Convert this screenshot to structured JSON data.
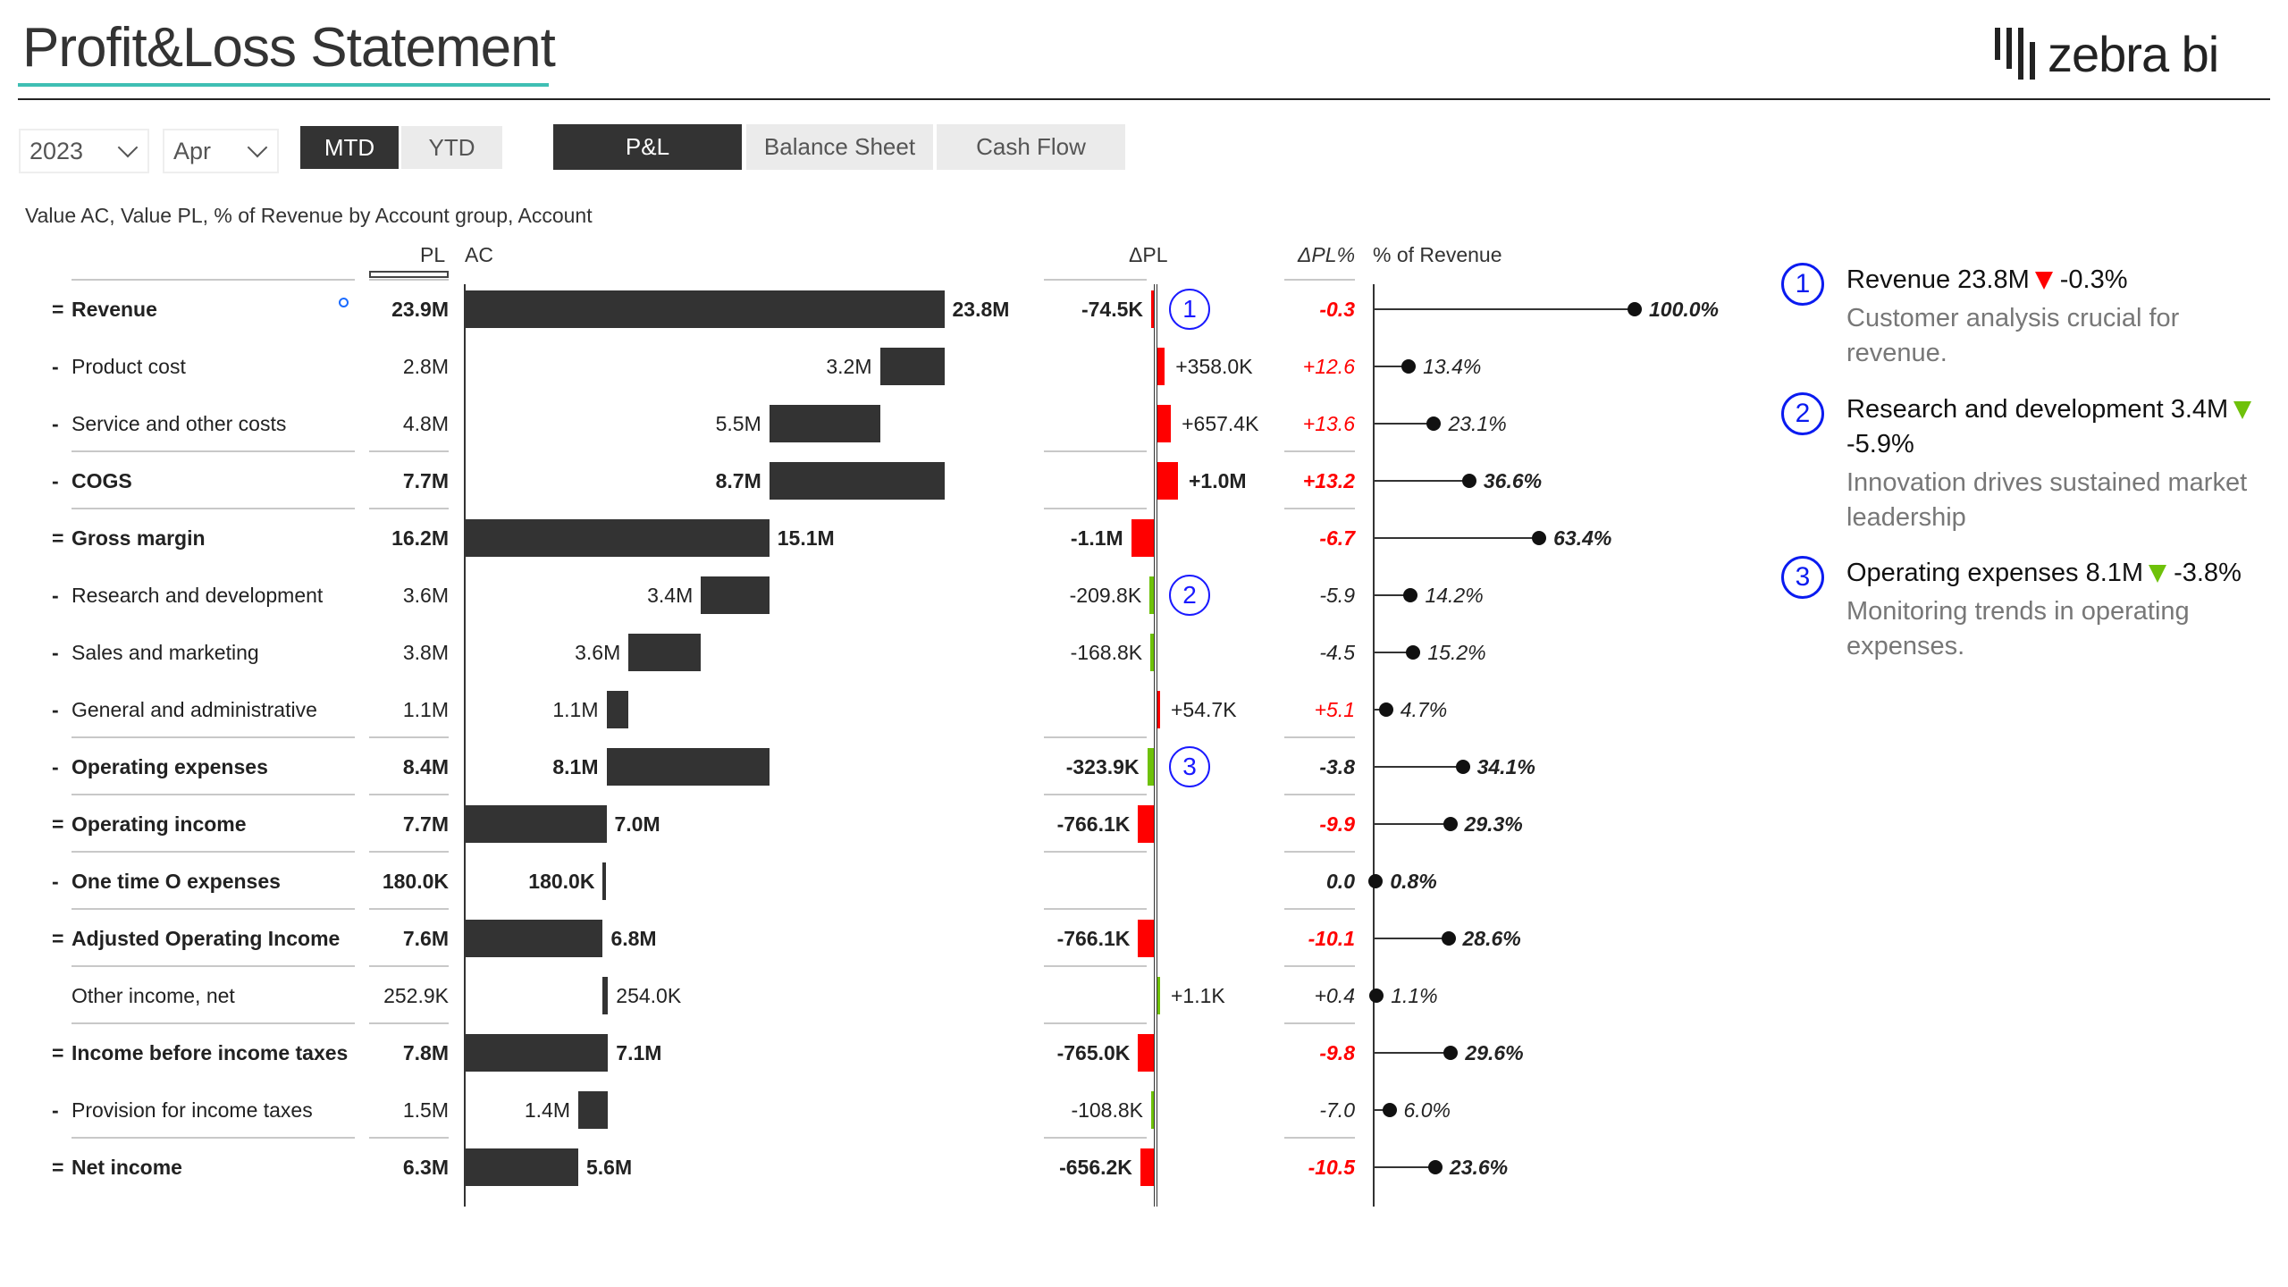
{
  "header": {
    "title": "Profit&Loss Statement",
    "logo_text": "zebra bi"
  },
  "filters": {
    "year": "2023",
    "month": "Apr",
    "period_buttons": [
      "MTD",
      "YTD"
    ],
    "period_selected": "MTD",
    "report_tabs": [
      "P&L",
      "Balance Sheet",
      "Cash Flow"
    ],
    "report_selected": "P&L"
  },
  "table": {
    "subtitle": "Value AC, Value PL, % of Revenue by Account group, Account",
    "headers": {
      "pl": "PL",
      "ac": "AC",
      "dpl": "ΔPL",
      "dplpct": "ΔPL%",
      "pct_rev": "% of Revenue"
    },
    "colors": {
      "bar": "#333333",
      "negative": "#ff0000",
      "positive": "#6ec10a",
      "annotation": "#1a1aff"
    },
    "rows": [
      {
        "sign": "=",
        "label": "Revenue",
        "bold": true,
        "sep": true,
        "pl": "23.9M",
        "ac": "23.8M",
        "ac_from": 0,
        "ac_to": 23.8,
        "ac_side": "right",
        "dpl": "-74.5K",
        "dpl_val": -0.0745,
        "dpl_color": "negative",
        "dplpct": "-0.3",
        "dplpct_red": true,
        "pct": "100.0%",
        "pct_val": 100,
        "annotation": "1",
        "marker": true
      },
      {
        "sign": "-",
        "label": "Product cost",
        "bold": false,
        "pl": "2.8M",
        "ac": "3.2M",
        "ac_from": 23.8,
        "ac_to": 20.6,
        "ac_side": "left",
        "dpl": "+358.0K",
        "dpl_val": 0.358,
        "dpl_color": "negative",
        "dplpct": "+12.6",
        "dplpct_red": true,
        "pct": "13.4%",
        "pct_val": 13.4
      },
      {
        "sign": "-",
        "label": "Service and other costs",
        "bold": false,
        "pl": "4.8M",
        "ac": "5.5M",
        "ac_from": 20.6,
        "ac_to": 15.1,
        "ac_side": "left",
        "dpl": "+657.4K",
        "dpl_val": 0.6574,
        "dpl_color": "negative",
        "dplpct": "+13.6",
        "dplpct_red": true,
        "pct": "23.1%",
        "pct_val": 23.1
      },
      {
        "sign": "-",
        "label": "COGS",
        "bold": true,
        "sep": true,
        "pl": "7.7M",
        "ac": "8.7M",
        "ac_from": 23.8,
        "ac_to": 15.1,
        "ac_side": "left",
        "dpl": "+1.0M",
        "dpl_val": 1.0,
        "dpl_color": "negative",
        "dplpct": "+13.2",
        "dplpct_red": true,
        "pct": "36.6%",
        "pct_val": 36.6
      },
      {
        "sign": "=",
        "label": "Gross margin",
        "bold": true,
        "sep": true,
        "pl": "16.2M",
        "ac": "15.1M",
        "ac_from": 0,
        "ac_to": 15.1,
        "ac_side": "right",
        "dpl": "-1.1M",
        "dpl_val": -1.1,
        "dpl_color": "negative",
        "dplpct": "-6.7",
        "dplpct_red": true,
        "pct": "63.4%",
        "pct_val": 63.4
      },
      {
        "sign": "-",
        "label": "Research and development",
        "bold": false,
        "pl": "3.6M",
        "ac": "3.4M",
        "ac_from": 15.1,
        "ac_to": 11.7,
        "ac_side": "left",
        "dpl": "-209.8K",
        "dpl_val": -0.2098,
        "dpl_color": "positive",
        "dplpct": "-5.9",
        "dplpct_red": false,
        "pct": "14.2%",
        "pct_val": 14.2,
        "annotation": "2"
      },
      {
        "sign": "-",
        "label": "Sales and marketing",
        "bold": false,
        "pl": "3.8M",
        "ac": "3.6M",
        "ac_from": 11.7,
        "ac_to": 8.1,
        "ac_side": "left",
        "dpl": "-168.8K",
        "dpl_val": -0.1688,
        "dpl_color": "positive",
        "dplpct": "-4.5",
        "dplpct_red": false,
        "pct": "15.2%",
        "pct_val": 15.2
      },
      {
        "sign": "-",
        "label": "General and administrative",
        "bold": false,
        "pl": "1.1M",
        "ac": "1.1M",
        "ac_from": 8.1,
        "ac_to": 7.0,
        "ac_side": "left",
        "dpl": "+54.7K",
        "dpl_val": 0.0547,
        "dpl_color": "negative",
        "dplpct": "+5.1",
        "dplpct_red": true,
        "pct": "4.7%",
        "pct_val": 4.7
      },
      {
        "sign": "-",
        "label": "Operating expenses",
        "bold": true,
        "sep": true,
        "pl": "8.4M",
        "ac": "8.1M",
        "ac_from": 7.0,
        "ac_to": 15.1,
        "ac_side": "left",
        "dpl": "-323.9K",
        "dpl_val": -0.3239,
        "dpl_color": "positive",
        "dplpct": "-3.8",
        "dplpct_red": false,
        "pct": "34.1%",
        "pct_val": 34.1,
        "annotation": "3"
      },
      {
        "sign": "=",
        "label": "Operating income",
        "bold": true,
        "sep": true,
        "pl": "7.7M",
        "ac": "7.0M",
        "ac_from": 0,
        "ac_to": 7.0,
        "ac_side": "right",
        "dpl": "-766.1K",
        "dpl_val": -0.7661,
        "dpl_color": "negative",
        "dplpct": "-9.9",
        "dplpct_red": true,
        "pct": "29.3%",
        "pct_val": 29.3
      },
      {
        "sign": "-",
        "label": "One time O expenses",
        "bold": true,
        "sep": true,
        "pl": "180.0K",
        "ac": "180.0K",
        "ac_from": 7.0,
        "ac_to": 6.82,
        "ac_side": "left",
        "dpl": "",
        "dpl_val": 0,
        "dpl_color": "negative",
        "dplpct": "0.0",
        "dplpct_red": false,
        "pct": "0.8%",
        "pct_val": 0.8
      },
      {
        "sign": "=",
        "label": "Adjusted Operating Income",
        "bold": true,
        "sep": true,
        "pl": "7.6M",
        "ac": "6.8M",
        "ac_from": 0,
        "ac_to": 6.82,
        "ac_side": "right",
        "dpl": "-766.1K",
        "dpl_val": -0.7661,
        "dpl_color": "negative",
        "dplpct": "-10.1",
        "dplpct_red": true,
        "pct": "28.6%",
        "pct_val": 28.6
      },
      {
        "sign": "",
        "label": "Other income, net",
        "bold": false,
        "sep": true,
        "pl": "252.9K",
        "ac": "254.0K",
        "ac_from": 6.82,
        "ac_to": 7.08,
        "ac_side": "right",
        "dpl": "+1.1K",
        "dpl_val": 0.0011,
        "dpl_color": "positive",
        "dplpct": "+0.4",
        "dplpct_red": false,
        "pct": "1.1%",
        "pct_val": 1.1
      },
      {
        "sign": "=",
        "label": "Income before income taxes",
        "bold": true,
        "sep": true,
        "pl": "7.8M",
        "ac": "7.1M",
        "ac_from": 0,
        "ac_to": 7.08,
        "ac_side": "right",
        "dpl": "-765.0K",
        "dpl_val": -0.765,
        "dpl_color": "negative",
        "dplpct": "-9.8",
        "dplpct_red": true,
        "pct": "29.6%",
        "pct_val": 29.6
      },
      {
        "sign": "-",
        "label": "Provision for income taxes",
        "bold": false,
        "pl": "1.5M",
        "ac": "1.4M",
        "ac_from": 7.08,
        "ac_to": 5.6,
        "ac_side": "left",
        "dpl": "-108.8K",
        "dpl_val": -0.1088,
        "dpl_color": "positive",
        "dplpct": "-7.0",
        "dplpct_red": false,
        "pct": "6.0%",
        "pct_val": 6.0
      },
      {
        "sign": "=",
        "label": "Net income",
        "bold": true,
        "sep": true,
        "pl": "6.3M",
        "ac": "5.6M",
        "ac_from": 0,
        "ac_to": 5.6,
        "ac_side": "right",
        "dpl": "-656.2K",
        "dpl_val": -0.6562,
        "dpl_color": "negative",
        "dplpct": "-10.5",
        "dplpct_red": true,
        "pct": "23.6%",
        "pct_val": 23.6
      }
    ]
  },
  "comments": [
    {
      "num": "1",
      "head": "Revenue 23.8M",
      "dir": "down",
      "dir_color": "negative",
      "delta": "-0.3%",
      "text": "Customer analysis crucial for revenue."
    },
    {
      "num": "2",
      "head": "Research and development 3.4M",
      "dir": "down",
      "dir_color": "positive",
      "delta": "-5.9%",
      "text": "Innovation drives sustained market leadership"
    },
    {
      "num": "3",
      "head": "Operating expenses 8.1M",
      "dir": "down",
      "dir_color": "positive",
      "delta": "-3.8%",
      "text": "Monitoring trends in operating expenses."
    }
  ]
}
